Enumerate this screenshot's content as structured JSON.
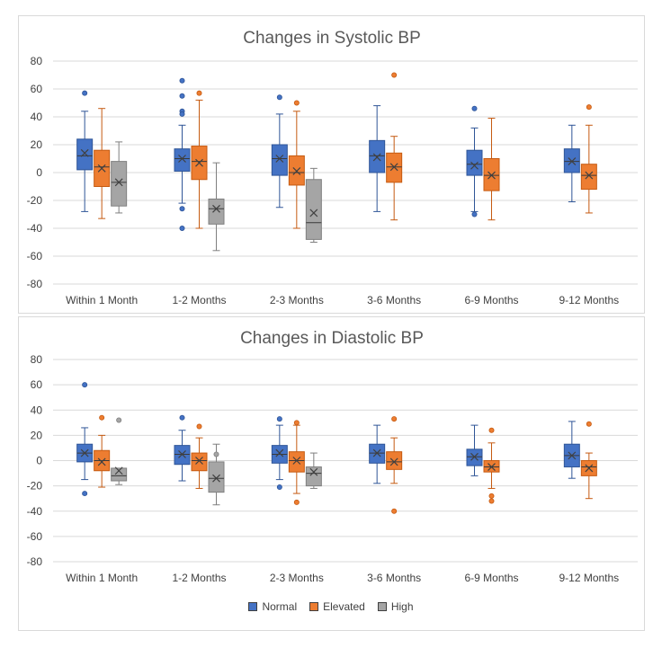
{
  "series_colors": {
    "Normal": "#4472c4",
    "Elevated": "#ed7d31",
    "High": "#a5a5a5"
  },
  "series_strokes": {
    "Normal": "#2f5597",
    "Elevated": "#c55a11",
    "High": "#7f7f7f"
  },
  "legend": [
    {
      "name": "Normal",
      "color": "#4472c4"
    },
    {
      "name": "Elevated",
      "color": "#ed7d31"
    },
    {
      "name": "High",
      "color": "#a5a5a5"
    }
  ],
  "chart_data": [
    {
      "type": "boxplot",
      "title": "Changes in Systolic BP",
      "ylim": [
        -80,
        80
      ],
      "yticks": [
        80,
        60,
        40,
        20,
        0,
        -20,
        -40,
        -60,
        -80
      ],
      "grid": true,
      "legend_position": "bottom",
      "categories": [
        "Within 1 Month",
        "1-2 Months",
        "2-3 Months",
        "3-6 Months",
        "6-9 Months",
        "9-12 Months"
      ],
      "series": [
        {
          "name": "Normal",
          "boxes": [
            {
              "min": -28,
              "q1": 2,
              "median": 12,
              "q3": 24,
              "max": 44,
              "mean": 14,
              "outliers": [
                57
              ]
            },
            {
              "min": -22,
              "q1": 1,
              "median": 10,
              "q3": 17,
              "max": 34,
              "mean": 10,
              "outliers": [
                66,
                55,
                44,
                42,
                -26,
                -40
              ]
            },
            {
              "min": -25,
              "q1": -2,
              "median": 10,
              "q3": 20,
              "max": 42,
              "mean": 10,
              "outliers": [
                54
              ]
            },
            {
              "min": -28,
              "q1": 0,
              "median": 12,
              "q3": 23,
              "max": 48,
              "mean": 11,
              "outliers": []
            },
            {
              "min": -28,
              "q1": -2,
              "median": 6,
              "q3": 16,
              "max": 32,
              "mean": 5,
              "outliers": [
                46,
                -30
              ]
            },
            {
              "min": -21,
              "q1": 0,
              "median": 8,
              "q3": 17,
              "max": 34,
              "mean": 8,
              "outliers": []
            }
          ]
        },
        {
          "name": "Elevated",
          "boxes": [
            {
              "min": -33,
              "q1": -10,
              "median": 4,
              "q3": 16,
              "max": 46,
              "mean": 3,
              "outliers": []
            },
            {
              "min": -40,
              "q1": -5,
              "median": 8,
              "q3": 19,
              "max": 52,
              "mean": 7,
              "outliers": [
                57
              ]
            },
            {
              "min": -40,
              "q1": -9,
              "median": 0,
              "q3": 12,
              "max": 44,
              "mean": 1,
              "outliers": [
                50
              ]
            },
            {
              "min": -34,
              "q1": -7,
              "median": 4,
              "q3": 14,
              "max": 26,
              "mean": 4,
              "outliers": [
                70
              ]
            },
            {
              "min": -34,
              "q1": -13,
              "median": -2,
              "q3": 10,
              "max": 39,
              "mean": -2,
              "outliers": []
            },
            {
              "min": -29,
              "q1": -12,
              "median": -2,
              "q3": 6,
              "max": 34,
              "mean": -2,
              "outliers": [
                47
              ]
            }
          ]
        },
        {
          "name": "High",
          "boxes": [
            {
              "min": -29,
              "q1": -24,
              "median": -7,
              "q3": 8,
              "max": 22,
              "mean": -7,
              "outliers": []
            },
            {
              "min": -56,
              "q1": -37,
              "median": -26,
              "q3": -19,
              "max": 7,
              "mean": -26,
              "outliers": []
            },
            {
              "min": -50,
              "q1": -48,
              "median": -36,
              "q3": -5,
              "max": 3,
              "mean": -29,
              "outliers": []
            }
          ]
        }
      ]
    },
    {
      "type": "boxplot",
      "title": "Changes in Diastolic BP",
      "ylim": [
        -80,
        80
      ],
      "yticks": [
        80,
        60,
        40,
        20,
        0,
        -20,
        -40,
        -60,
        -80
      ],
      "grid": true,
      "legend_position": "bottom",
      "categories": [
        "Within 1 Month",
        "1-2 Months",
        "2-3 Months",
        "3-6 Months",
        "6-9 Months",
        "9-12 Months"
      ],
      "series": [
        {
          "name": "Normal",
          "boxes": [
            {
              "min": -15,
              "q1": -1,
              "median": 6,
              "q3": 13,
              "max": 26,
              "mean": 6,
              "outliers": [
                60,
                -26
              ]
            },
            {
              "min": -16,
              "q1": -3,
              "median": 5,
              "q3": 12,
              "max": 24,
              "mean": 5,
              "outliers": [
                34
              ]
            },
            {
              "min": -15,
              "q1": -2,
              "median": 5,
              "q3": 12,
              "max": 28,
              "mean": 6,
              "outliers": [
                33,
                -21
              ]
            },
            {
              "min": -18,
              "q1": -2,
              "median": 6,
              "q3": 13,
              "max": 28,
              "mean": 6,
              "outliers": []
            },
            {
              "min": -12,
              "q1": -4,
              "median": 3,
              "q3": 9,
              "max": 28,
              "mean": 3,
              "outliers": []
            },
            {
              "min": -14,
              "q1": -5,
              "median": 4,
              "q3": 13,
              "max": 31,
              "mean": 4,
              "outliers": []
            }
          ]
        },
        {
          "name": "Elevated",
          "boxes": [
            {
              "min": -21,
              "q1": -8,
              "median": 0,
              "q3": 8,
              "max": 20,
              "mean": -1,
              "outliers": [
                34
              ]
            },
            {
              "min": -22,
              "q1": -8,
              "median": 0,
              "q3": 6,
              "max": 18,
              "mean": 0,
              "outliers": [
                27
              ]
            },
            {
              "min": -26,
              "q1": -9,
              "median": 0,
              "q3": 7,
              "max": 28,
              "mean": 0,
              "outliers": [
                30,
                -33
              ]
            },
            {
              "min": -18,
              "q1": -7,
              "median": -1,
              "q3": 7,
              "max": 18,
              "mean": -1,
              "outliers": [
                33,
                -40
              ]
            },
            {
              "min": -22,
              "q1": -9,
              "median": -5,
              "q3": 0,
              "max": 14,
              "mean": -5,
              "outliers": [
                24,
                -28,
                -32
              ]
            },
            {
              "min": -30,
              "q1": -12,
              "median": -5,
              "q3": 0,
              "max": 6,
              "mean": -6,
              "outliers": [
                29
              ]
            }
          ]
        },
        {
          "name": "High",
          "boxes": [
            {
              "min": -19,
              "q1": -16,
              "median": -12,
              "q3": -6,
              "max": -6,
              "mean": -8,
              "outliers": [
                32
              ]
            },
            {
              "min": -35,
              "q1": -25,
              "median": -14,
              "q3": -1,
              "max": 13,
              "mean": -14,
              "outliers": [
                5
              ]
            },
            {
              "min": -22,
              "q1": -20,
              "median": -10,
              "q3": -5,
              "max": 6,
              "mean": -9,
              "outliers": []
            }
          ]
        }
      ]
    }
  ]
}
